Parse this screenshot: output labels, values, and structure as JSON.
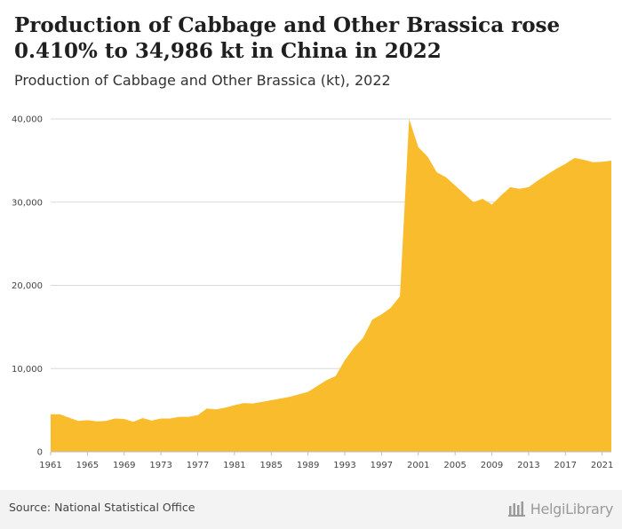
{
  "header": {
    "title": "Production of Cabbage and Other Brassica rose 0.410% to 34,986 kt in China in 2022",
    "subtitle": "Production of Cabbage and Other Brassica (kt), 2022"
  },
  "footer": {
    "source": "Source: National Statistical Office",
    "logo_text": "HelgiLibrary"
  },
  "colors": {
    "area_fill": "#f9bc2d",
    "grid": "#d9d9d9"
  },
  "chart_data": {
    "type": "area",
    "title": "Production of Cabbage and Other Brassica rose 0.410% to 34,986 kt in China in 2022",
    "subtitle": "Production of Cabbage and Other Brassica (kt), 2022",
    "xlabel": "",
    "ylabel": "",
    "ylim": [
      0,
      40000
    ],
    "y_ticks": [
      0,
      10000,
      20000,
      30000,
      40000
    ],
    "y_tick_labels": [
      "0",
      "10,000",
      "20,000",
      "30,000",
      "40,000"
    ],
    "x_tick_labels": [
      "1961",
      "1965",
      "1969",
      "1973",
      "1977",
      "1981",
      "1985",
      "1989",
      "1993",
      "1997",
      "2001",
      "2005",
      "2009",
      "2013",
      "2017",
      "2021"
    ],
    "grid": true,
    "legend": "none",
    "x": [
      1961,
      1962,
      1963,
      1964,
      1965,
      1966,
      1967,
      1968,
      1969,
      1970,
      1971,
      1972,
      1973,
      1974,
      1975,
      1976,
      1977,
      1978,
      1979,
      1980,
      1981,
      1982,
      1983,
      1984,
      1985,
      1986,
      1987,
      1988,
      1989,
      1990,
      1991,
      1992,
      1993,
      1994,
      1995,
      1996,
      1997,
      1998,
      1999,
      2000,
      2001,
      2002,
      2003,
      2004,
      2005,
      2006,
      2007,
      2008,
      2009,
      2010,
      2011,
      2012,
      2013,
      2014,
      2015,
      2016,
      2017,
      2018,
      2019,
      2020,
      2021,
      2022
    ],
    "series": [
      {
        "values": [
          4500,
          4500,
          4100,
          3700,
          3800,
          3650,
          3700,
          4000,
          3950,
          3600,
          4050,
          3750,
          4000,
          4000,
          4200,
          4200,
          4400,
          5200,
          5100,
          5300,
          5600,
          5850,
          5800,
          6000,
          6200,
          6400,
          6600,
          6900,
          7200,
          7900,
          8600,
          9100,
          11000,
          12500,
          13700,
          15900,
          16500,
          17300,
          18700,
          40000,
          36600,
          35500,
          33600,
          33000,
          32000,
          31000,
          30000,
          30400,
          29700,
          30800,
          31800,
          31600,
          31800,
          32600,
          33300,
          34000,
          34600,
          35300,
          35100,
          34800,
          34850,
          34986
        ]
      }
    ]
  }
}
